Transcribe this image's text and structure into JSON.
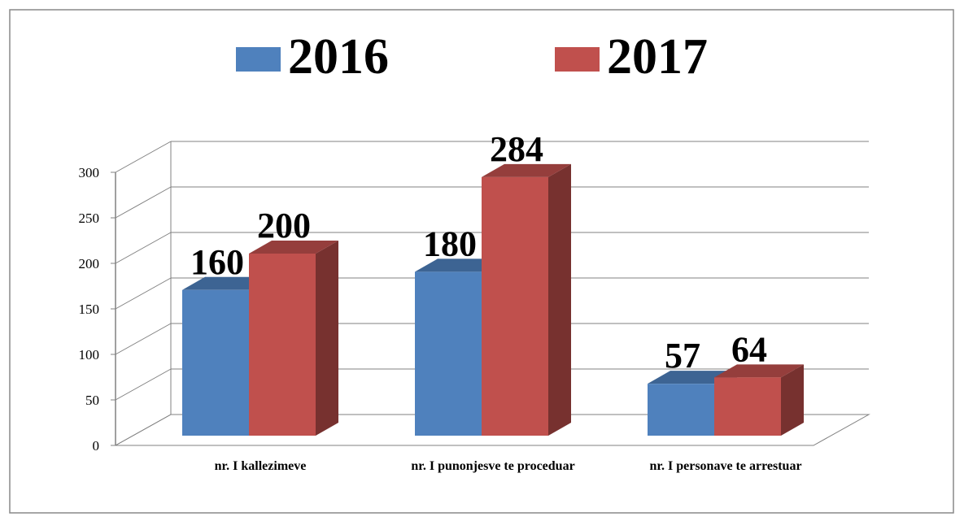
{
  "chart_data": {
    "type": "bar3d",
    "categories": [
      "nr. I kallezimeve",
      "nr. I punonjesve te proceduar",
      "nr. I personave te arrestuar"
    ],
    "series": [
      {
        "name": "2016",
        "color": "#4f81bd",
        "values": [
          160,
          180,
          57
        ]
      },
      {
        "name": "2017",
        "color": "#c0504d",
        "values": [
          200,
          284,
          64
        ]
      }
    ],
    "ylim": [
      0,
      300
    ],
    "yticks": [
      0,
      50,
      100,
      150,
      200,
      250,
      300
    ],
    "grid": true,
    "legend": "top"
  }
}
